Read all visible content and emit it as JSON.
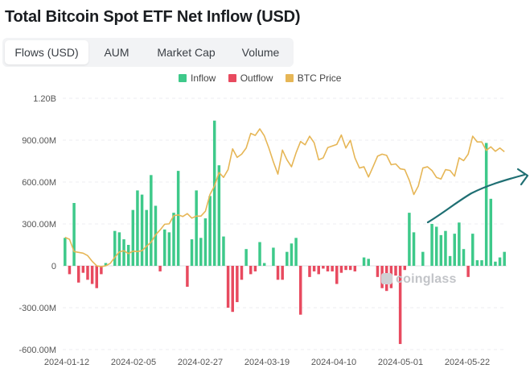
{
  "header": {
    "title": "Total Bitcoin Spot ETF Net Inflow (USD)"
  },
  "tabs": [
    {
      "label": "Flows (USD)",
      "active": true
    },
    {
      "label": "AUM",
      "active": false
    },
    {
      "label": "Market Cap",
      "active": false
    },
    {
      "label": "Volume",
      "active": false
    }
  ],
  "legend": [
    {
      "label": "Inflow",
      "color": "#3ec98a"
    },
    {
      "label": "Outflow",
      "color": "#e84a5f"
    },
    {
      "label": "BTC Price",
      "color": "#e6b656"
    }
  ],
  "watermark": "coinglass",
  "chart_data": {
    "type": "bar",
    "title": "Total Bitcoin Spot ETF Net Inflow (USD)",
    "y_ticks": [
      "1.20B",
      "900.00M",
      "600.00M",
      "300.00M",
      "0",
      "-300.00M",
      "-600.00M"
    ],
    "x_ticks": [
      "2024-01-12",
      "2024-02-05",
      "2024-02-27",
      "2024-03-19",
      "2024-04-10",
      "2024-05-01",
      "2024-05-22"
    ],
    "ylim_millions": [
      -600,
      1200
    ],
    "unit": "millions USD",
    "categories": [
      "2024-01-11",
      "2024-01-12",
      "2024-01-16",
      "2024-01-17",
      "2024-01-18",
      "2024-01-19",
      "2024-01-22",
      "2024-01-23",
      "2024-01-24",
      "2024-01-25",
      "2024-01-26",
      "2024-01-29",
      "2024-01-30",
      "2024-01-31",
      "2024-02-01",
      "2024-02-02",
      "2024-02-05",
      "2024-02-06",
      "2024-02-07",
      "2024-02-08",
      "2024-02-09",
      "2024-02-12",
      "2024-02-13",
      "2024-02-14",
      "2024-02-15",
      "2024-02-16",
      "2024-02-20",
      "2024-02-21",
      "2024-02-22",
      "2024-02-23",
      "2024-02-26",
      "2024-02-27",
      "2024-02-28",
      "2024-02-29",
      "2024-03-01",
      "2024-03-04",
      "2024-03-05",
      "2024-03-06",
      "2024-03-07",
      "2024-03-08",
      "2024-03-11",
      "2024-03-12",
      "2024-03-13",
      "2024-03-14",
      "2024-03-15",
      "2024-03-18",
      "2024-03-19",
      "2024-03-20",
      "2024-03-21",
      "2024-03-22",
      "2024-03-25",
      "2024-03-26",
      "2024-03-27",
      "2024-03-28",
      "2024-04-01",
      "2024-04-02",
      "2024-04-03",
      "2024-04-04",
      "2024-04-05",
      "2024-04-08",
      "2024-04-09",
      "2024-04-10",
      "2024-04-11",
      "2024-04-12",
      "2024-04-15",
      "2024-04-16",
      "2024-04-17",
      "2024-04-18",
      "2024-04-19",
      "2024-04-22",
      "2024-04-23",
      "2024-04-24",
      "2024-04-25",
      "2024-04-26",
      "2024-04-29",
      "2024-04-30",
      "2024-05-01",
      "2024-05-02",
      "2024-05-03",
      "2024-05-06",
      "2024-05-07",
      "2024-05-08",
      "2024-05-09",
      "2024-05-10",
      "2024-05-13",
      "2024-05-14",
      "2024-05-15",
      "2024-05-16",
      "2024-05-17",
      "2024-05-20",
      "2024-05-21",
      "2024-05-22",
      "2024-05-23",
      "2024-05-24",
      "2024-05-28",
      "2024-05-29",
      "2024-05-30",
      "2024-05-31"
    ],
    "series": [
      {
        "name": "Net Flow",
        "values": [
          200,
          -60,
          450,
          -120,
          -50,
          -100,
          -130,
          -160,
          -60,
          20,
          0,
          250,
          240,
          190,
          150,
          400,
          540,
          510,
          400,
          650,
          430,
          -40,
          260,
          240,
          380,
          680,
          0,
          -150,
          190,
          540,
          200,
          340,
          500,
          1040,
          720,
          210,
          -300,
          -330,
          -260,
          -100,
          120,
          -60,
          -40,
          170,
          20,
          0,
          130,
          -100,
          -100,
          100,
          160,
          200,
          -350,
          0,
          -80,
          -40,
          -60,
          -20,
          -40,
          -40,
          -130,
          -50,
          -30,
          -30,
          -40,
          0,
          60,
          50,
          0,
          -80,
          -160,
          -180,
          -160,
          -70,
          -560,
          -30,
          380,
          240,
          0,
          100,
          0,
          300,
          280,
          220,
          250,
          70,
          230,
          310,
          120,
          -80,
          230,
          40,
          40,
          880,
          480,
          30,
          60,
          100
        ]
      },
      {
        "name": "BTC Price",
        "values": [
          46.5,
          46.0,
          43.0,
          42.8,
          42.6,
          42.0,
          40.6,
          39.5,
          39.3,
          39.5,
          40.1,
          41.6,
          42.9,
          43.2,
          42.5,
          43.1,
          43.0,
          43.2,
          44.3,
          45.3,
          47.1,
          48.3,
          49.7,
          49.8,
          51.8,
          52.0,
          51.6,
          52.3,
          51.2,
          51.7,
          51.7,
          52.9,
          57.0,
          59.1,
          62.4,
          61.2,
          63.1,
          68.2,
          66.1,
          66.9,
          68.4,
          72.0,
          71.5,
          73.1,
          71.4,
          68.4,
          65.0,
          62.0,
          67.9,
          65.5,
          63.8,
          67.2,
          70.0,
          69.2,
          71.3,
          69.7,
          65.5,
          66.0,
          68.5,
          68.9,
          69.3,
          71.6,
          68.4,
          70.3,
          66.0,
          63.5,
          63.8,
          61.3,
          63.8,
          66.4,
          66.9,
          66.6,
          64.3,
          64.5,
          63.3,
          63.1,
          60.5,
          57.0,
          59.1,
          63.5,
          63.8,
          62.9,
          61.2,
          60.8,
          63.1,
          62.9,
          61.5,
          66.0,
          65.3,
          66.9,
          71.3,
          69.9,
          69.9,
          67.8,
          68.7,
          67.6,
          68.4,
          67.5
        ]
      }
    ],
    "btc_price_unit": "thousands USD (read against an independent right scale, not shown)"
  }
}
